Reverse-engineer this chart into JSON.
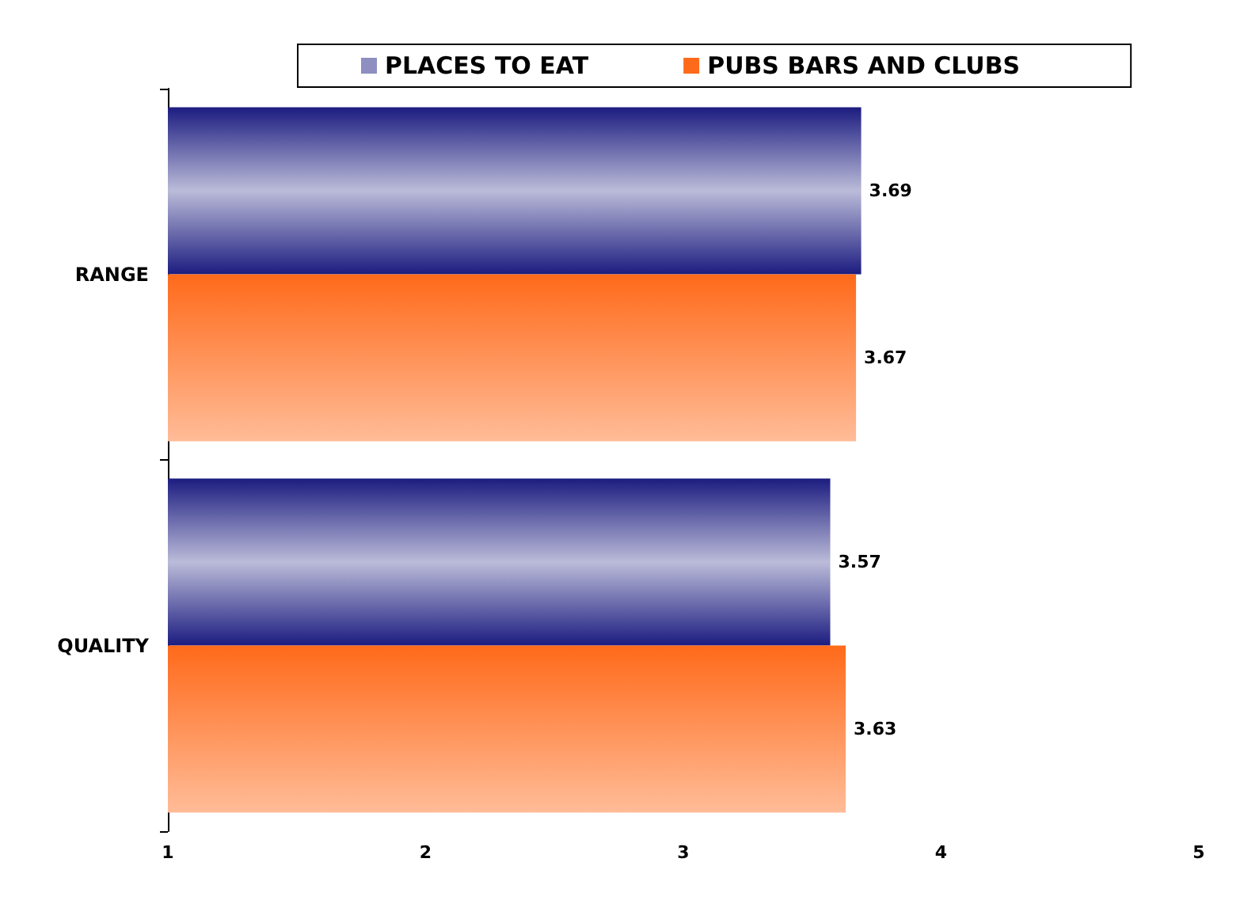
{
  "chart_data": {
    "type": "bar",
    "orientation": "horizontal",
    "categories": [
      "RANGE",
      "QUALITY"
    ],
    "series": [
      {
        "name": "PLACES TO EAT",
        "color": "#1c1c80",
        "values": [
          3.69,
          3.57
        ]
      },
      {
        "name": "PUBS BARS AND CLUBS",
        "color": "#ff6a1a",
        "values": [
          3.67,
          3.63
        ]
      }
    ],
    "xlim": [
      1,
      5
    ],
    "xticks": [
      1,
      2,
      3,
      4,
      5
    ],
    "data_labels": true,
    "grid": false,
    "legend": "top"
  }
}
